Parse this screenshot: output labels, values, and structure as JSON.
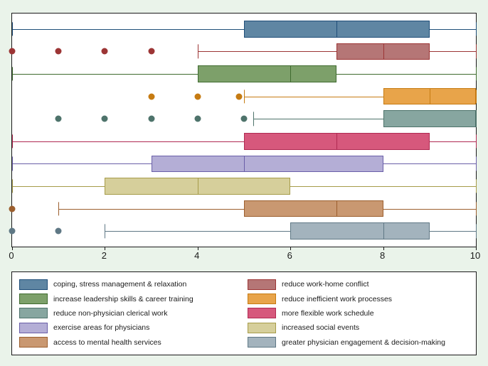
{
  "chart": {
    "type": "boxplot-horizontal",
    "background_color": "#eaf3ea",
    "plot_background": "#ffffff",
    "border_color": "#1a1a1a",
    "x_axis": {
      "min": 0,
      "max": 10,
      "ticks": [
        0,
        2,
        4,
        6,
        8,
        10
      ],
      "label_fontsize": 13
    },
    "series": [
      {
        "label": "coping, stress management & relaxation",
        "fill": "#5f86a3",
        "stroke": "#1f4e79",
        "whisker_lo": 0,
        "q1": 5.0,
        "median": 7.0,
        "q3": 9.0,
        "whisker_hi": 10,
        "outliers": []
      },
      {
        "label": "reduce work-home conflict",
        "fill": "#b57676",
        "stroke": "#9c3535",
        "whisker_lo": 4.0,
        "q1": 7.0,
        "median": 8.0,
        "q3": 9.0,
        "whisker_hi": 10,
        "outliers": [
          0,
          1,
          2,
          3
        ]
      },
      {
        "label": "increase leadership skills & career training",
        "fill": "#7da06a",
        "stroke": "#3f6b2f",
        "whisker_lo": 0,
        "q1": 4.0,
        "median": 6.0,
        "q3": 7.0,
        "whisker_hi": 10,
        "outliers": []
      },
      {
        "label": "reduce inefficient work processes",
        "fill": "#e8a44a",
        "stroke": "#c67b12",
        "whisker_lo": 5.0,
        "q1": 8.0,
        "median": 9.0,
        "q3": 10.0,
        "whisker_hi": 10,
        "outliers": [
          3,
          4,
          4.9
        ]
      },
      {
        "label": "reduce non-physician clerical work",
        "fill": "#87a6a0",
        "stroke": "#4e736b",
        "whisker_lo": 5.2,
        "q1": 8.0,
        "median": 10.0,
        "q3": 10.0,
        "whisker_hi": 10,
        "outliers": [
          1,
          2,
          3,
          4,
          5
        ]
      },
      {
        "label": "more flexible work schedule",
        "fill": "#d6587c",
        "stroke": "#b02a52",
        "whisker_lo": 0,
        "q1": 5.0,
        "median": 7.0,
        "q3": 9.0,
        "whisker_hi": 10,
        "outliers": []
      },
      {
        "label": "exercise areas for physicians",
        "fill": "#b4aed6",
        "stroke": "#6a5fa8",
        "whisker_lo": 0,
        "q1": 3.0,
        "median": 5.0,
        "q3": 8.0,
        "whisker_hi": 10,
        "outliers": []
      },
      {
        "label": "increased social events",
        "fill": "#d6cf9b",
        "stroke": "#a69c4a",
        "whisker_lo": 0,
        "q1": 2.0,
        "median": 4.0,
        "q3": 6.0,
        "whisker_hi": 10,
        "outliers": []
      },
      {
        "label": "access to mental health services",
        "fill": "#c99871",
        "stroke": "#9c5f2e",
        "whisker_lo": 1.0,
        "q1": 5.0,
        "median": 7.0,
        "q3": 8.0,
        "whisker_hi": 10,
        "outliers": [
          0
        ]
      },
      {
        "label": "greater physician engagement & decision-making",
        "fill": "#a3b3bd",
        "stroke": "#5f7885",
        "whisker_lo": 2.0,
        "q1": 6.0,
        "median": 8.0,
        "q3": 9.0,
        "whisker_hi": 10,
        "outliers": [
          0,
          1
        ]
      }
    ],
    "legend_fontsize": 10.5,
    "legend_order": [
      0,
      1,
      2,
      3,
      4,
      5,
      6,
      7,
      8,
      9
    ]
  }
}
